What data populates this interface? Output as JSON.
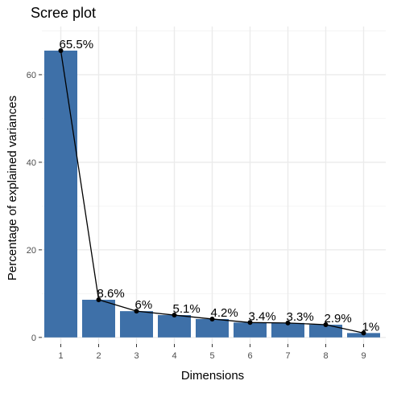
{
  "chart_data": {
    "type": "bar",
    "title": "Scree plot",
    "xlabel": "Dimensions",
    "ylabel": "Percentage of explained variances",
    "categories": [
      "1",
      "2",
      "3",
      "4",
      "5",
      "6",
      "7",
      "8",
      "9"
    ],
    "values": [
      65.5,
      8.6,
      6.0,
      5.1,
      4.2,
      3.4,
      3.3,
      2.9,
      1.0
    ],
    "data_labels": [
      "65.5%",
      "8.6%",
      "6%",
      "5.1%",
      "4.2%",
      "3.4%",
      "3.3%",
      "2.9%",
      "1%"
    ],
    "yticks": [
      0,
      20,
      40,
      60
    ],
    "ytick_labels": [
      "0",
      "20",
      "40",
      "60"
    ],
    "ylim": [
      -1.5,
      71
    ],
    "grid": true,
    "overlay_line": true,
    "colors": {
      "bar": "#3E70A8",
      "line": "#000000",
      "point": "#000000",
      "panel_bg": "#FFFFFF",
      "grid_major": "#EBEBEB",
      "grid_minor": "#F4F4F4",
      "tick_label": "#4D4D4D",
      "text": "#000000"
    }
  }
}
